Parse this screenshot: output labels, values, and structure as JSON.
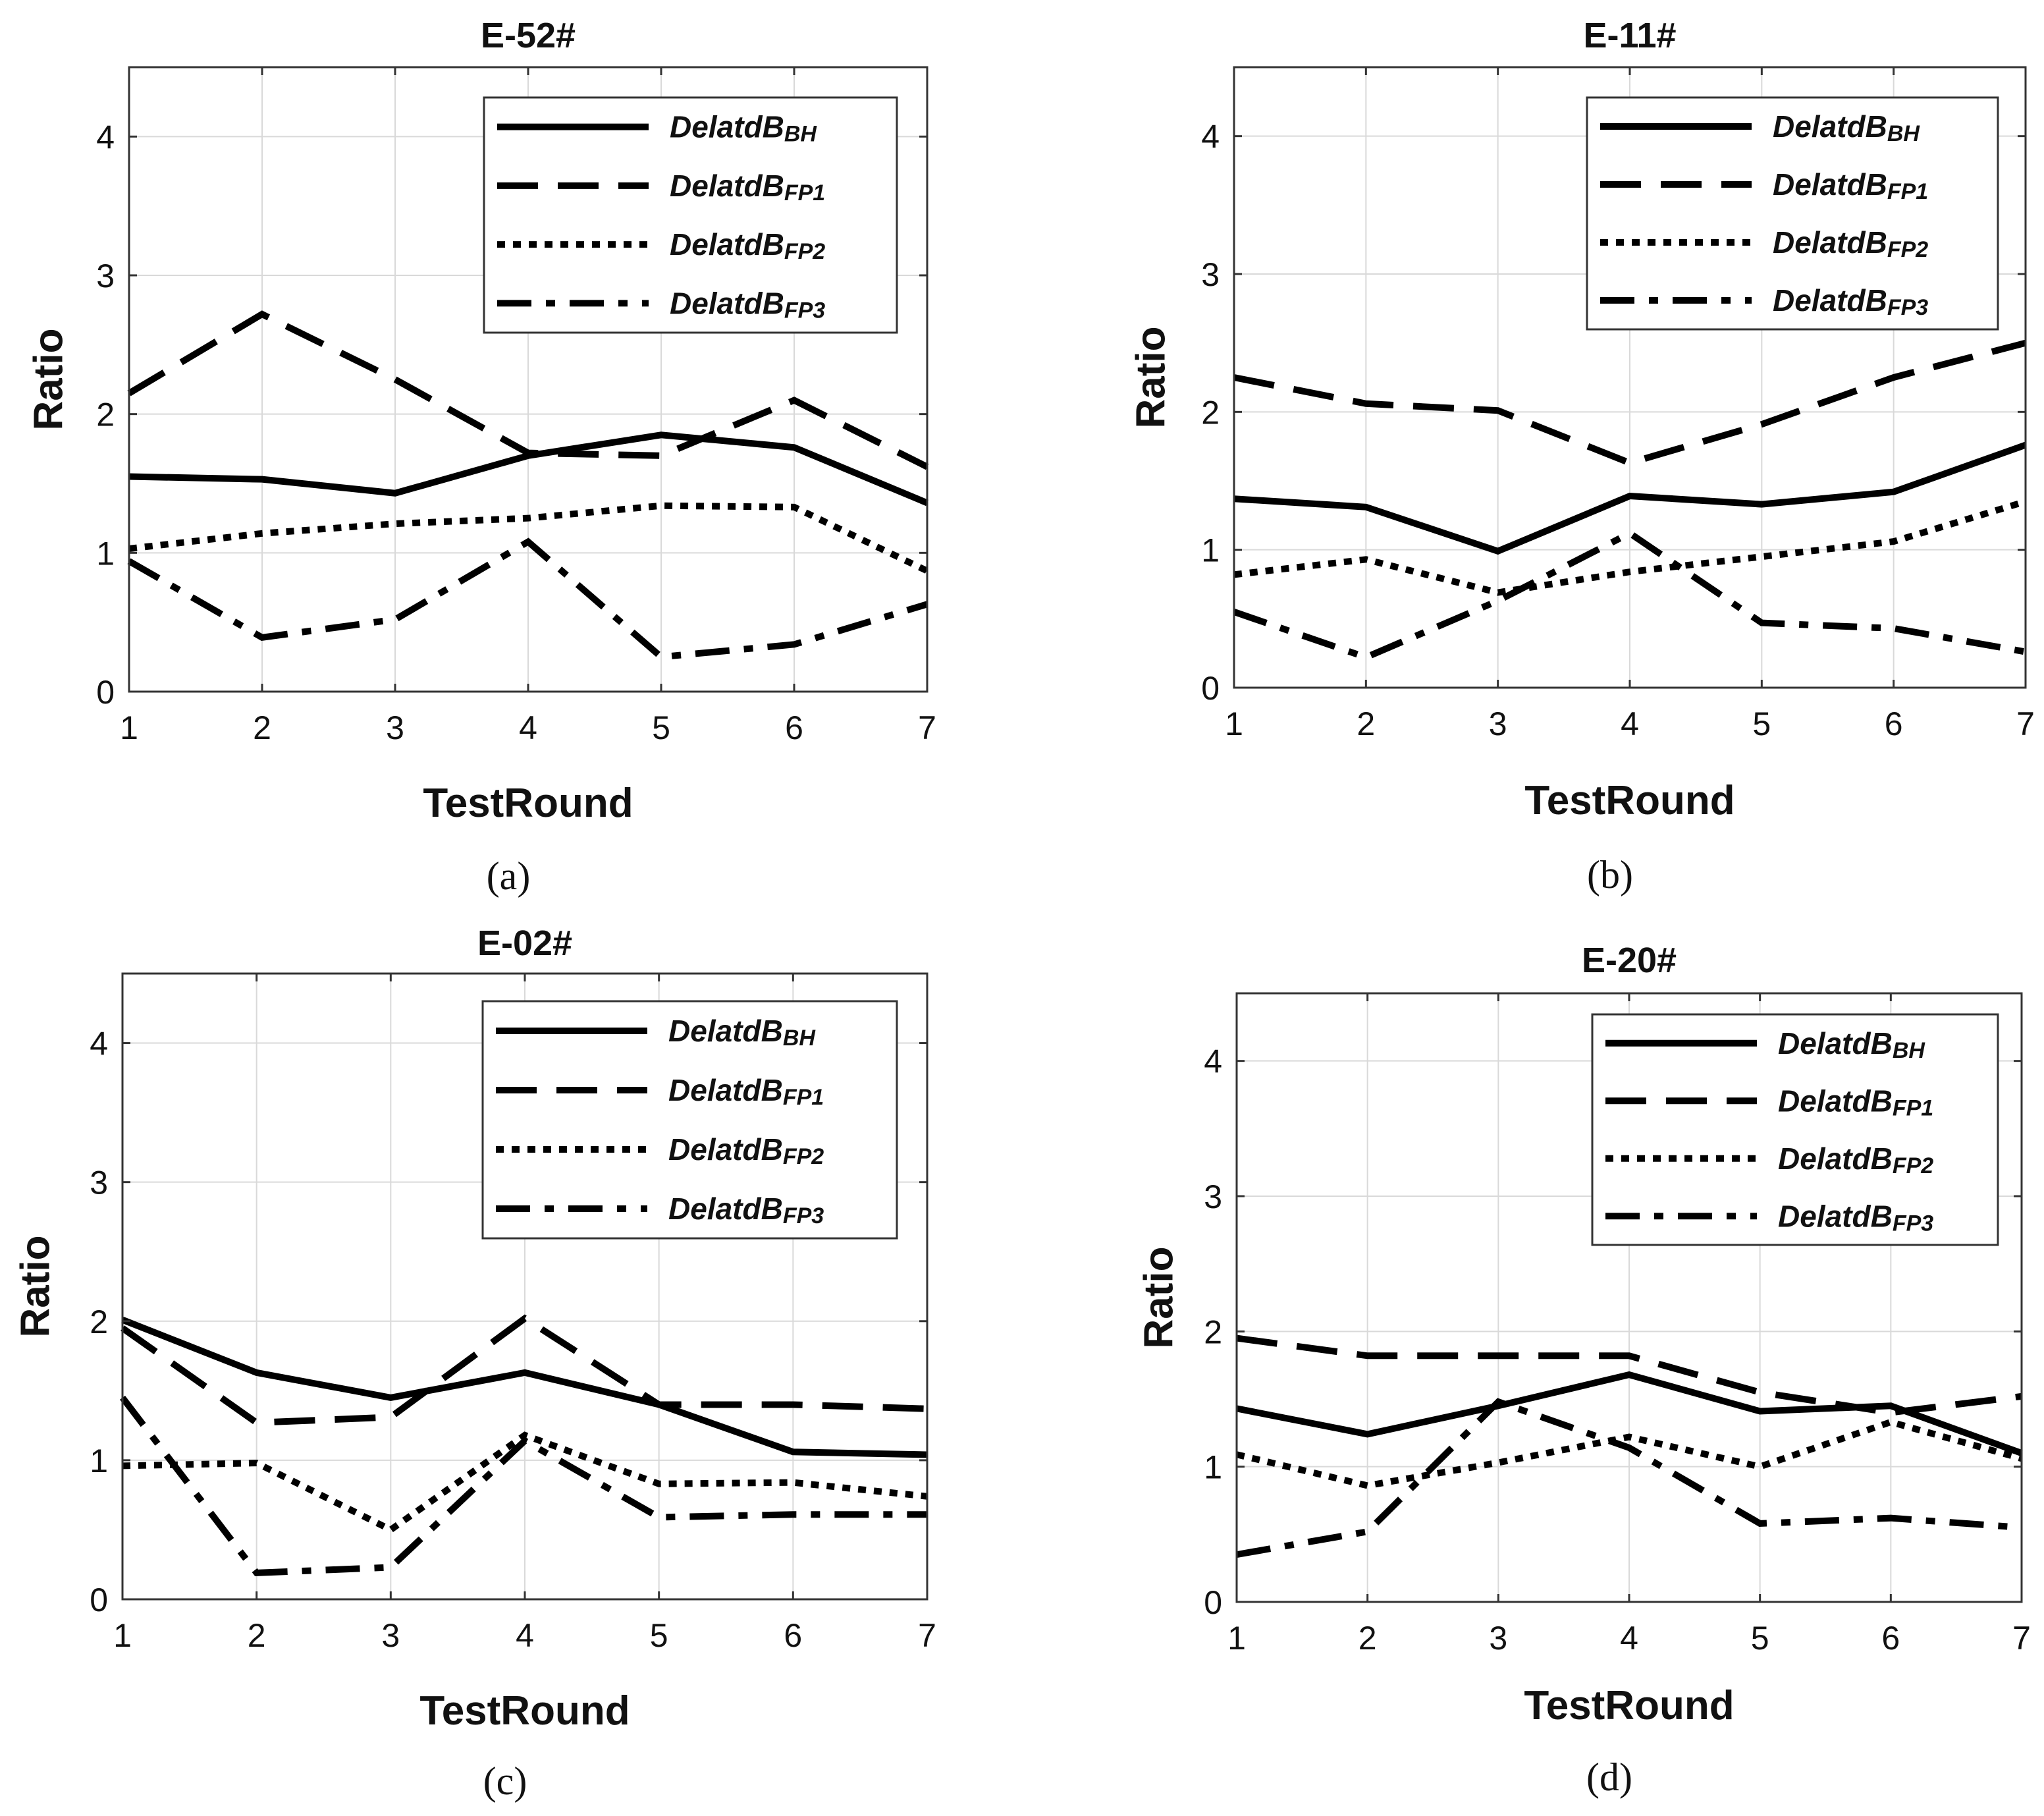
{
  "chart_data": [
    {
      "type": "line",
      "title": "E-52#",
      "panel_label": "(a)",
      "xlabel": "TestRound",
      "ylabel": "Ratio",
      "x": [
        1,
        2,
        3,
        4,
        5,
        6,
        7
      ],
      "xlim": [
        1,
        7
      ],
      "ylim": [
        0,
        4.5
      ],
      "yticks": [
        0,
        1,
        2,
        3,
        4
      ],
      "grid": true,
      "legend_position": "top-right",
      "series": [
        {
          "name": "DelatdB",
          "subscript": "BH",
          "style": "solid",
          "values": [
            1.55,
            1.53,
            1.43,
            1.7,
            1.85,
            1.76,
            1.36
          ]
        },
        {
          "name": "DelatdB",
          "subscript": "FP1",
          "style": "dashed",
          "values": [
            2.15,
            2.72,
            2.25,
            1.72,
            1.7,
            2.1,
            1.62
          ]
        },
        {
          "name": "DelatdB",
          "subscript": "FP2",
          "style": "dotted",
          "values": [
            1.03,
            1.14,
            1.21,
            1.25,
            1.34,
            1.33,
            0.87
          ]
        },
        {
          "name": "DelatdB",
          "subscript": "FP3",
          "style": "dashdot",
          "values": [
            0.94,
            0.39,
            0.52,
            1.08,
            0.25,
            0.34,
            0.63
          ]
        }
      ]
    },
    {
      "type": "line",
      "title": "E-11#",
      "panel_label": "(b)",
      "xlabel": "TestRound",
      "ylabel": "Ratio",
      "x": [
        1,
        2,
        3,
        4,
        5,
        6,
        7
      ],
      "xlim": [
        1,
        7
      ],
      "ylim": [
        0,
        4.5
      ],
      "yticks": [
        0,
        1,
        2,
        3,
        4
      ],
      "grid": true,
      "legend_position": "top-right",
      "series": [
        {
          "name": "DelatdB",
          "subscript": "BH",
          "style": "solid",
          "values": [
            1.37,
            1.31,
            0.99,
            1.39,
            1.33,
            1.42,
            1.76
          ]
        },
        {
          "name": "DelatdB",
          "subscript": "FP1",
          "style": "dashed",
          "values": [
            2.25,
            2.06,
            2.01,
            1.63,
            1.91,
            2.25,
            2.5
          ]
        },
        {
          "name": "DelatdB",
          "subscript": "FP2",
          "style": "dotted",
          "values": [
            0.82,
            0.93,
            0.69,
            0.84,
            0.95,
            1.06,
            1.35
          ]
        },
        {
          "name": "DelatdB",
          "subscript": "FP3",
          "style": "dashdot",
          "values": [
            0.55,
            0.22,
            0.63,
            1.12,
            0.47,
            0.43,
            0.26
          ]
        }
      ]
    },
    {
      "type": "line",
      "title": "E-02#",
      "panel_label": "(c)",
      "xlabel": "TestRound",
      "ylabel": "Ratio",
      "x": [
        1,
        2,
        3,
        4,
        5,
        6,
        7
      ],
      "xlim": [
        1,
        7
      ],
      "ylim": [
        0,
        4.5
      ],
      "yticks": [
        0,
        1,
        2,
        3,
        4
      ],
      "grid": true,
      "legend_position": "top-right",
      "series": [
        {
          "name": "DelatdB",
          "subscript": "BH",
          "style": "solid",
          "values": [
            2.01,
            1.63,
            1.45,
            1.63,
            1.4,
            1.06,
            1.04
          ]
        },
        {
          "name": "DelatdB",
          "subscript": "FP1",
          "style": "dashed",
          "values": [
            1.95,
            1.27,
            1.31,
            2.02,
            1.4,
            1.4,
            1.37
          ]
        },
        {
          "name": "DelatdB",
          "subscript": "FP2",
          "style": "dotted",
          "values": [
            0.96,
            0.98,
            0.5,
            1.18,
            0.83,
            0.84,
            0.74
          ]
        },
        {
          "name": "DelatdB",
          "subscript": "FP3",
          "style": "dashdot",
          "values": [
            1.45,
            0.19,
            0.23,
            1.14,
            0.59,
            0.61,
            0.61
          ]
        }
      ]
    },
    {
      "type": "line",
      "title": "E-20#",
      "panel_label": "(d)",
      "xlabel": "TestRound",
      "ylabel": "Ratio",
      "x": [
        1,
        2,
        3,
        4,
        5,
        6,
        7
      ],
      "xlim": [
        1,
        7
      ],
      "ylim": [
        0,
        4.5
      ],
      "yticks": [
        0,
        1,
        2,
        3,
        4
      ],
      "grid": true,
      "legend_position": "top-right",
      "series": [
        {
          "name": "DelatdB",
          "subscript": "BH",
          "style": "solid",
          "values": [
            1.43,
            1.24,
            1.45,
            1.68,
            1.41,
            1.45,
            1.1
          ]
        },
        {
          "name": "DelatdB",
          "subscript": "FP1",
          "style": "dashed",
          "values": [
            1.95,
            1.82,
            1.82,
            1.82,
            1.55,
            1.4,
            1.52
          ]
        },
        {
          "name": "DelatdB",
          "subscript": "FP2",
          "style": "dotted",
          "values": [
            1.09,
            0.86,
            1.03,
            1.22,
            1.0,
            1.33,
            1.06
          ]
        },
        {
          "name": "DelatdB",
          "subscript": "FP3",
          "style": "dashdot",
          "values": [
            0.35,
            0.52,
            1.48,
            1.14,
            0.58,
            0.62,
            0.55
          ]
        }
      ]
    }
  ]
}
